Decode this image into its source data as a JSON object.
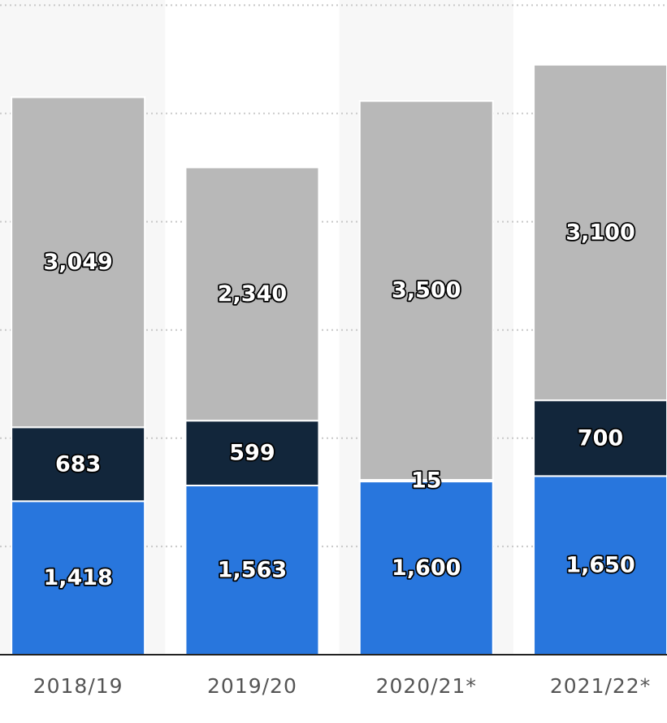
{
  "chart_data": {
    "type": "bar",
    "stacked": true,
    "categories": [
      "2018/19",
      "2019/20",
      "2020/21*",
      "2021/22*"
    ],
    "series": [
      {
        "values": [
          1418,
          1563,
          1600,
          1650
        ],
        "color": "#2876dd"
      },
      {
        "values": [
          683,
          599,
          15,
          700
        ],
        "color": "#12263b"
      },
      {
        "values": [
          3049,
          2340,
          3500,
          3100
        ],
        "color": "#b8b8b8"
      }
    ],
    "ylim": [
      0,
      6000
    ],
    "grid": true,
    "legend": "none"
  }
}
